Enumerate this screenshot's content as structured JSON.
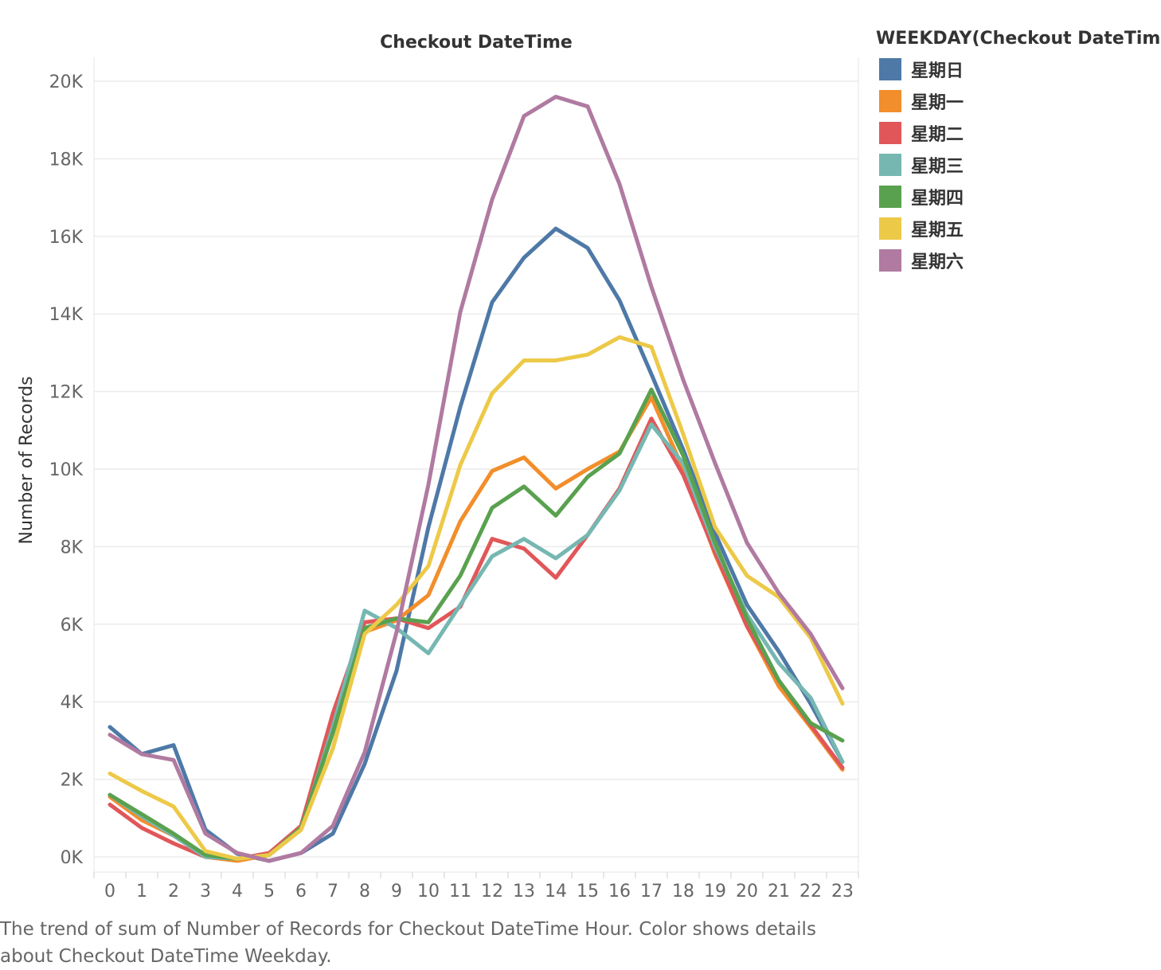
{
  "chart_data": {
    "type": "line",
    "title": "Checkout DateTime",
    "xlabel": "",
    "ylabel": "Number of Records",
    "x": [
      "0",
      "1",
      "2",
      "3",
      "4",
      "5",
      "6",
      "7",
      "8",
      "9",
      "10",
      "11",
      "12",
      "13",
      "14",
      "15",
      "16",
      "17",
      "18",
      "19",
      "20",
      "21",
      "22",
      "23"
    ],
    "ylim": [
      0,
      20000
    ],
    "yticks": [
      0,
      2000,
      4000,
      6000,
      8000,
      10000,
      12000,
      14000,
      16000,
      18000,
      20000
    ],
    "ytick_labels": [
      "0K",
      "2K",
      "4K",
      "6K",
      "8K",
      "10K",
      "12K",
      "14K",
      "16K",
      "18K",
      "20K"
    ],
    "grid": true,
    "legend_title": "WEEKDAY(Checkout DateTime)",
    "legend_position": "right",
    "series": [
      {
        "name": "星期日",
        "color": "#4e79a7",
        "values": [
          3350,
          2650,
          2880,
          700,
          80,
          -100,
          100,
          600,
          2400,
          4800,
          8500,
          11600,
          14300,
          15450,
          16200,
          15700,
          14350,
          12450,
          10500,
          8350,
          6500,
          5300,
          3950,
          2450
        ]
      },
      {
        "name": "星期一",
        "color": "#f28e2b",
        "values": [
          1550,
          950,
          550,
          0,
          -100,
          50,
          700,
          2800,
          5800,
          6100,
          6750,
          8650,
          9950,
          10300,
          9500,
          10000,
          10450,
          11850,
          10000,
          7800,
          5950,
          4400,
          3350,
          2250
        ]
      },
      {
        "name": "星期二",
        "color": "#e15759",
        "values": [
          1350,
          750,
          350,
          0,
          -50,
          100,
          800,
          3700,
          6050,
          6150,
          5900,
          6450,
          8200,
          7950,
          7200,
          8300,
          9500,
          11300,
          9850,
          7850,
          5950,
          4550,
          3400,
          2300
        ]
      },
      {
        "name": "星期三",
        "color": "#76b7b2",
        "values": [
          1600,
          1050,
          550,
          0,
          -50,
          50,
          700,
          3350,
          6350,
          5900,
          5250,
          6500,
          7750,
          8200,
          7700,
          8300,
          9450,
          11150,
          10150,
          8000,
          6250,
          5000,
          4100,
          2450
        ]
      },
      {
        "name": "星期四",
        "color": "#59a14f",
        "values": [
          1600,
          1100,
          600,
          50,
          -50,
          50,
          750,
          3200,
          5900,
          6150,
          6050,
          7250,
          9000,
          9550,
          8800,
          9800,
          10400,
          12050,
          10350,
          8100,
          6150,
          4550,
          3450,
          3000
        ]
      },
      {
        "name": "星期五",
        "color": "#edc948",
        "values": [
          2150,
          1700,
          1300,
          150,
          -50,
          50,
          700,
          2800,
          5750,
          6500,
          7500,
          10100,
          11950,
          12800,
          12800,
          12950,
          13400,
          13150,
          10900,
          8500,
          7250,
          6700,
          5650,
          3950
        ]
      },
      {
        "name": "星期六",
        "color": "#b07aa1",
        "values": [
          3150,
          2650,
          2500,
          600,
          100,
          -100,
          100,
          800,
          2700,
          5800,
          9600,
          14050,
          16950,
          19100,
          19600,
          19350,
          17350,
          14700,
          12300,
          10150,
          8100,
          6800,
          5750,
          4350
        ]
      }
    ]
  },
  "caption": "The trend of sum of Number of Records for Checkout DateTime Hour.  Color shows details about Checkout DateTime Weekday."
}
